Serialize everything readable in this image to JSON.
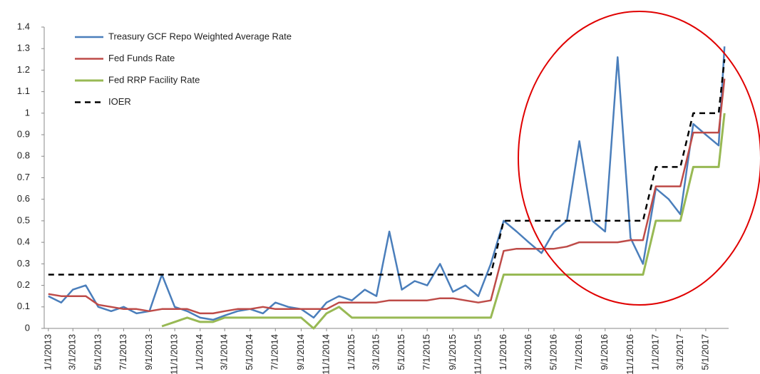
{
  "chart_data": {
    "type": "line",
    "x": [
      "1/1/2013",
      "2/1/2013",
      "3/1/2013",
      "4/1/2013",
      "5/1/2013",
      "6/1/2013",
      "7/1/2013",
      "8/1/2013",
      "9/1/2013",
      "10/1/2013",
      "11/1/2013",
      "12/1/2013",
      "1/1/2014",
      "2/1/2014",
      "3/1/2014",
      "4/1/2014",
      "5/1/2014",
      "6/1/2014",
      "7/1/2014",
      "8/1/2014",
      "9/1/2014",
      "10/1/2014",
      "11/1/2014",
      "12/1/2014",
      "1/1/2015",
      "2/1/2015",
      "3/1/2015",
      "4/1/2015",
      "5/1/2015",
      "6/1/2015",
      "7/1/2015",
      "8/1/2015",
      "9/1/2015",
      "10/1/2015",
      "11/1/2015",
      "12/1/2015",
      "1/1/2016",
      "2/1/2016",
      "3/1/2016",
      "4/1/2016",
      "5/1/2016",
      "6/1/2016",
      "7/1/2016",
      "8/1/2016",
      "9/1/2016",
      "10/1/2016",
      "11/1/2016",
      "12/1/2016",
      "1/1/2017",
      "2/1/2017",
      "3/1/2017",
      "4/1/2017",
      "5/1/2017",
      "6/1/2017",
      "6/15/2017"
    ],
    "series": [
      {
        "name": "Treasury GCF Repo Weighted Average Rate",
        "color": "#4a7ebb",
        "width": 2.5,
        "values": [
          0.15,
          0.12,
          0.18,
          0.2,
          0.1,
          0.08,
          0.1,
          0.07,
          0.08,
          0.25,
          0.1,
          0.08,
          0.05,
          0.04,
          0.06,
          0.08,
          0.09,
          0.07,
          0.12,
          0.1,
          0.09,
          0.05,
          0.12,
          0.15,
          0.13,
          0.18,
          0.15,
          0.45,
          0.18,
          0.22,
          0.2,
          0.3,
          0.17,
          0.2,
          0.15,
          0.3,
          0.5,
          0.45,
          0.4,
          0.35,
          0.45,
          0.5,
          0.87,
          0.5,
          0.45,
          1.26,
          0.42,
          0.3,
          0.65,
          0.6,
          0.53,
          0.95,
          0.9,
          0.85,
          1.31
        ]
      },
      {
        "name": "Fed Funds Rate",
        "color": "#be4b48",
        "width": 2.5,
        "values": [
          0.16,
          0.15,
          0.15,
          0.15,
          0.11,
          0.1,
          0.09,
          0.09,
          0.08,
          0.09,
          0.09,
          0.09,
          0.07,
          0.07,
          0.08,
          0.09,
          0.09,
          0.1,
          0.09,
          0.09,
          0.09,
          0.09,
          0.09,
          0.12,
          0.12,
          0.12,
          0.12,
          0.13,
          0.13,
          0.13,
          0.13,
          0.14,
          0.14,
          0.13,
          0.12,
          0.13,
          0.36,
          0.37,
          0.37,
          0.37,
          0.37,
          0.38,
          0.4,
          0.4,
          0.4,
          0.4,
          0.41,
          0.41,
          0.66,
          0.66,
          0.66,
          0.91,
          0.91,
          0.91,
          1.16
        ]
      },
      {
        "name": "Fed RRP Facility Rate",
        "color": "#98b954",
        "width": 3,
        "values": [
          null,
          null,
          null,
          null,
          null,
          null,
          null,
          null,
          null,
          0.01,
          0.03,
          0.05,
          0.03,
          0.03,
          0.05,
          0.05,
          0.05,
          0.05,
          0.05,
          0.05,
          0.05,
          0,
          0.07,
          0.1,
          0.05,
          0.05,
          0.05,
          0.05,
          0.05,
          0.05,
          0.05,
          0.05,
          0.05,
          0.05,
          0.05,
          0.05,
          0.25,
          0.25,
          0.25,
          0.25,
          0.25,
          0.25,
          0.25,
          0.25,
          0.25,
          0.25,
          0.25,
          0.25,
          0.5,
          0.5,
          0.5,
          0.75,
          0.75,
          0.75,
          1.0
        ]
      },
      {
        "name": "IOER",
        "color": "#000000",
        "width": 2.5,
        "dashed": true,
        "values": [
          0.25,
          0.25,
          0.25,
          0.25,
          0.25,
          0.25,
          0.25,
          0.25,
          0.25,
          0.25,
          0.25,
          0.25,
          0.25,
          0.25,
          0.25,
          0.25,
          0.25,
          0.25,
          0.25,
          0.25,
          0.25,
          0.25,
          0.25,
          0.25,
          0.25,
          0.25,
          0.25,
          0.25,
          0.25,
          0.25,
          0.25,
          0.25,
          0.25,
          0.25,
          0.25,
          0.25,
          0.5,
          0.5,
          0.5,
          0.5,
          0.5,
          0.5,
          0.5,
          0.5,
          0.5,
          0.5,
          0.5,
          0.5,
          0.75,
          0.75,
          0.75,
          1.0,
          1.0,
          1.0,
          1.25
        ]
      }
    ],
    "xlim": [
      "12/22/2012",
      "6/25/2017"
    ],
    "xticks": [
      "1/1/2013",
      "3/1/2013",
      "5/1/2013",
      "7/1/2013",
      "9/1/2013",
      "11/1/2013",
      "1/1/2014",
      "3/1/2014",
      "5/1/2014",
      "7/1/2014",
      "9/1/2014",
      "11/1/2014",
      "1/1/2015",
      "3/1/2015",
      "5/1/2015",
      "7/1/2015",
      "9/1/2015",
      "11/1/2015",
      "1/1/2016",
      "3/1/2016",
      "5/1/2016",
      "7/1/2016",
      "9/1/2016",
      "11/1/2016",
      "1/1/2017",
      "3/1/2017",
      "5/1/2017"
    ],
    "ylim": [
      0,
      1.4
    ],
    "yticks": [
      0,
      0.1,
      0.2,
      0.3,
      0.4,
      0.5,
      0.6,
      0.7,
      0.8,
      0.9,
      1,
      1.1,
      1.2,
      1.3,
      1.4
    ],
    "grid": false,
    "legend": "upper-left"
  }
}
